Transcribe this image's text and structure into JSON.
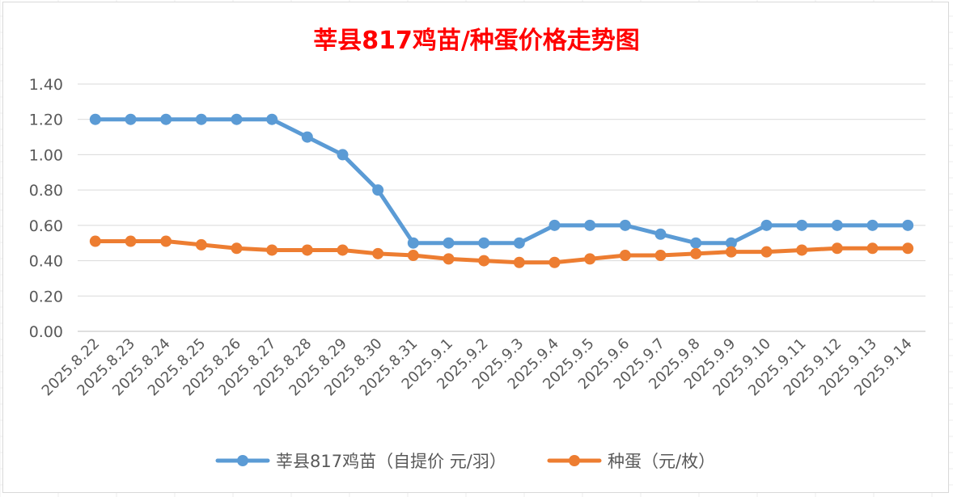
{
  "chart_data": {
    "type": "line",
    "title": "莘县817鸡苗/种蛋价格走势图",
    "xlabel": "",
    "ylabel": "",
    "categories": [
      "2025.8.22",
      "2025.8.23",
      "2025.8.24",
      "2025.8.25",
      "2025.8.26",
      "2025.8.27",
      "2025.8.28",
      "2025.8.29",
      "2025.8.30",
      "2025.8.31",
      "2025.9.1",
      "2025.9.2",
      "2025.9.3",
      "2025.9.4",
      "2025.9.5",
      "2025.9.6",
      "2025.9.7",
      "2025.9.8",
      "2025.9.9",
      "2025.9.10",
      "2025.9.11",
      "2025.9.12",
      "2025.9.13",
      "2025.9.14"
    ],
    "y_ticks": [
      "0.00",
      "0.20",
      "0.40",
      "0.60",
      "0.80",
      "1.00",
      "1.20",
      "1.40"
    ],
    "ylim": [
      0,
      1.4
    ],
    "grid": true,
    "legend_position": "bottom",
    "series": [
      {
        "name": "莘县817鸡苗（自提价 元/羽）",
        "color": "#5b9bd5",
        "values": [
          1.2,
          1.2,
          1.2,
          1.2,
          1.2,
          1.2,
          1.1,
          1.0,
          0.8,
          0.5,
          0.5,
          0.5,
          0.5,
          0.6,
          0.6,
          0.6,
          0.55,
          0.5,
          0.5,
          0.6,
          0.6,
          0.6,
          0.6,
          0.6
        ]
      },
      {
        "name": "种蛋（元/枚）",
        "color": "#ed7d31",
        "values": [
          0.51,
          0.51,
          0.51,
          0.49,
          0.47,
          0.46,
          0.46,
          0.46,
          0.44,
          0.43,
          0.41,
          0.4,
          0.39,
          0.39,
          0.41,
          0.43,
          0.43,
          0.44,
          0.45,
          0.45,
          0.46,
          0.47,
          0.47,
          0.47
        ]
      }
    ]
  }
}
